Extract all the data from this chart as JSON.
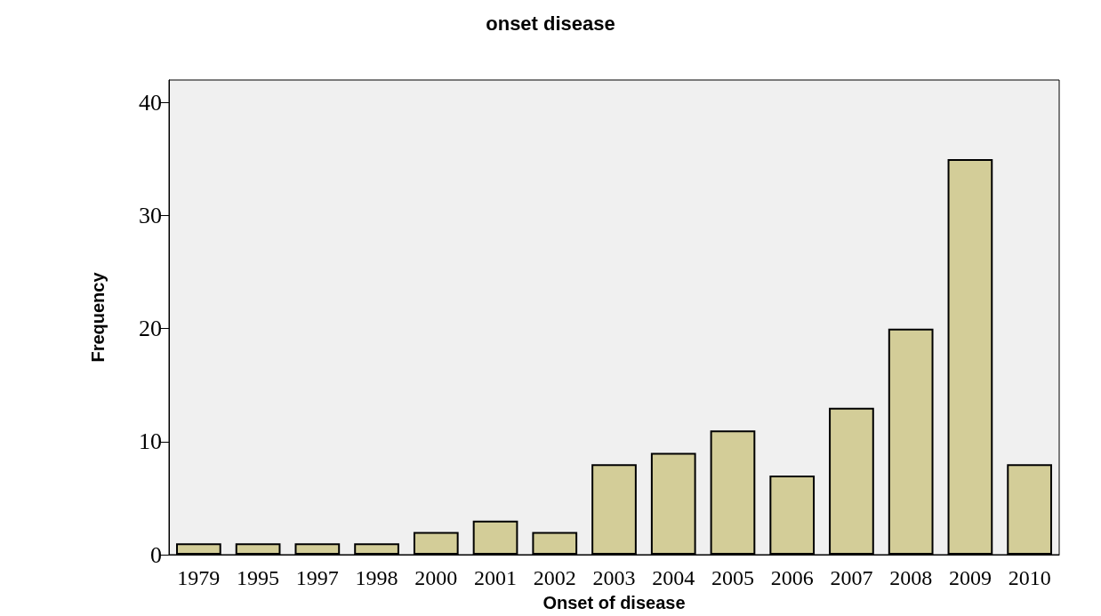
{
  "chart_data": {
    "type": "bar",
    "title": "onset disease",
    "xlabel": "Onset of disease",
    "ylabel": "Frequency",
    "categories": [
      "1979",
      "1995",
      "1997",
      "1998",
      "2000",
      "2001",
      "2002",
      "2003",
      "2004",
      "2005",
      "2006",
      "2007",
      "2008",
      "2009",
      "2010"
    ],
    "values": [
      1,
      1,
      1,
      1,
      2,
      3,
      2,
      8,
      9,
      11,
      7,
      13,
      20,
      35,
      8
    ],
    "color": "#d3cd98",
    "ylim": [
      0,
      42
    ],
    "yticks": [
      0,
      10,
      20,
      30,
      40
    ],
    "grid": false
  }
}
